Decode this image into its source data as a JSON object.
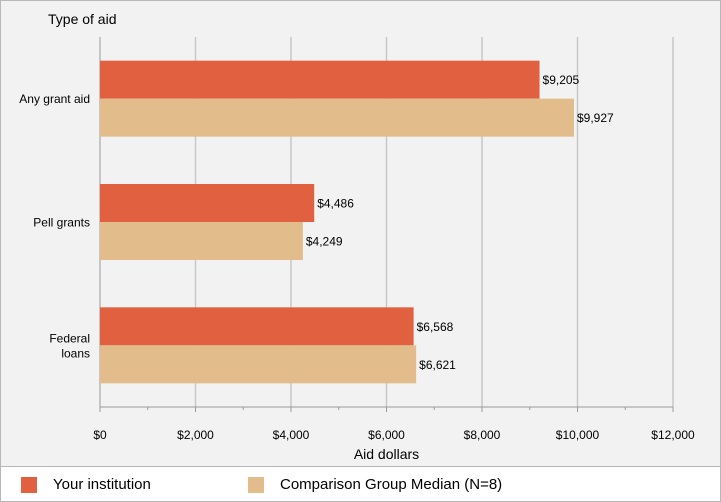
{
  "chart_data": {
    "type": "bar",
    "orientation": "horizontal",
    "title": "Type of aid",
    "xlabel": "Aid dollars",
    "ylabel": "Type of aid",
    "categories": [
      "Any grant aid",
      "Pell grants",
      "Federal\nloans"
    ],
    "series": [
      {
        "name": "Your institution",
        "color": "#e06040",
        "values": [
          9205,
          4486,
          6568
        ],
        "labels": [
          "$9,205",
          "$4,486",
          "$6,568"
        ]
      },
      {
        "name": "Comparison Group Median (N=8)",
        "color": "#e2bc8a",
        "values": [
          9927,
          4249,
          6621
        ],
        "labels": [
          "$9,927",
          "$4,249",
          "$6,621"
        ]
      }
    ],
    "xlim": [
      0,
      12000
    ],
    "xticks": [
      0,
      2000,
      4000,
      6000,
      8000,
      10000,
      12000
    ],
    "xtick_labels": [
      "$0",
      "$2,000",
      "$4,000",
      "$6,000",
      "$8,000",
      "$10,000",
      "$12,000"
    ],
    "grid": true,
    "legend_position": "bottom"
  }
}
